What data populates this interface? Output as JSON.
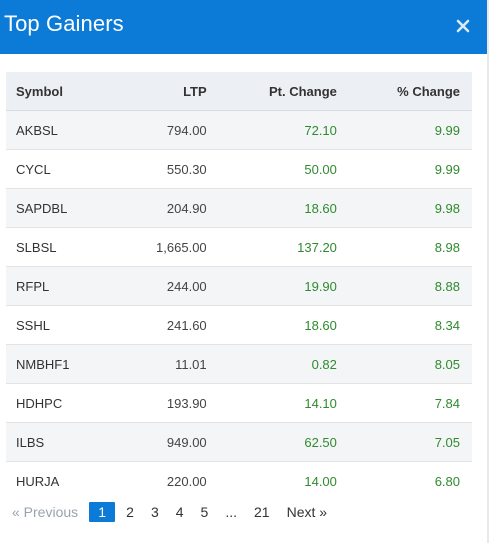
{
  "modal": {
    "title": "Top Gainers"
  },
  "table": {
    "headers": {
      "symbol": "Symbol",
      "ltp": "LTP",
      "pt_change": "Pt. Change",
      "pct_change": "% Change"
    },
    "rows": [
      {
        "symbol": "AKBSL",
        "ltp": "794.00",
        "pt": "72.10",
        "pct": "9.99"
      },
      {
        "symbol": "CYCL",
        "ltp": "550.30",
        "pt": "50.00",
        "pct": "9.99"
      },
      {
        "symbol": "SAPDBL",
        "ltp": "204.90",
        "pt": "18.60",
        "pct": "9.98"
      },
      {
        "symbol": "SLBSL",
        "ltp": "1,665.00",
        "pt": "137.20",
        "pct": "8.98"
      },
      {
        "symbol": "RFPL",
        "ltp": "244.00",
        "pt": "19.90",
        "pct": "8.88"
      },
      {
        "symbol": "SSHL",
        "ltp": "241.60",
        "pt": "18.60",
        "pct": "8.34"
      },
      {
        "symbol": "NMBHF1",
        "ltp": "11.01",
        "pt": "0.82",
        "pct": "8.05"
      },
      {
        "symbol": "HDHPC",
        "ltp": "193.90",
        "pt": "14.10",
        "pct": "7.84"
      },
      {
        "symbol": "ILBS",
        "ltp": "949.00",
        "pt": "62.50",
        "pct": "7.05"
      },
      {
        "symbol": "HURJA",
        "ltp": "220.00",
        "pt": "14.00",
        "pct": "6.80"
      }
    ]
  },
  "pagination": {
    "previous": "« Previous",
    "pages": [
      "1",
      "2",
      "3",
      "4",
      "5"
    ],
    "ellipsis": "...",
    "last": "21",
    "next": "Next »",
    "active": "1"
  },
  "colors": {
    "header_bg": "#0c7bd7",
    "positive": "#2e8b2e"
  },
  "icons": {
    "close": "close-icon"
  }
}
